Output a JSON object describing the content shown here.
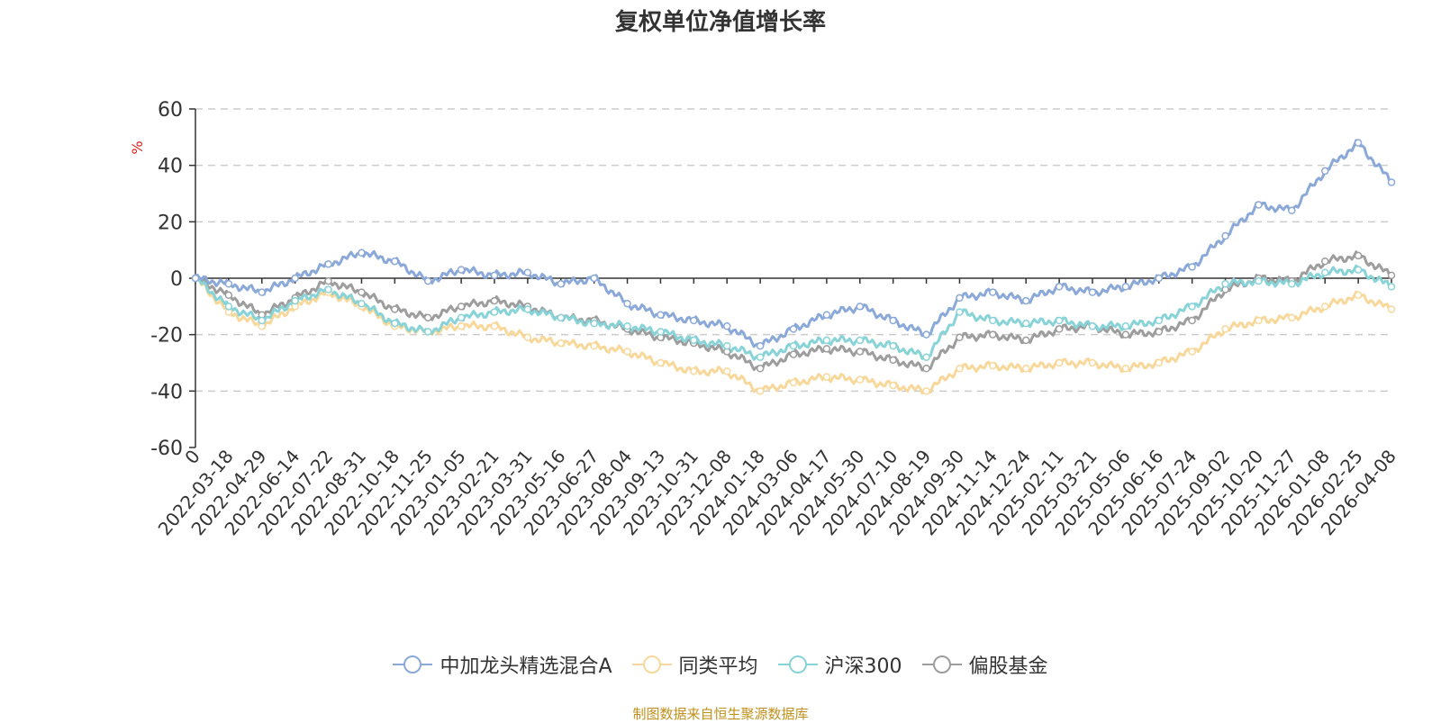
{
  "chart_data": {
    "type": "line",
    "title": "复权单位净值增长率",
    "ylabel": "%",
    "ylim": [
      -60,
      60
    ],
    "yticks": [
      60,
      40,
      20,
      0,
      -20,
      -40,
      -60
    ],
    "grid": true,
    "legend_position": "bottom",
    "x": [
      "0",
      "2022-03-18",
      "2022-04-29",
      "2022-06-14",
      "2022-07-22",
      "2022-08-31",
      "2022-10-18",
      "2022-11-25",
      "2023-01-05",
      "2023-02-21",
      "2023-03-31",
      "2023-05-16",
      "2023-06-27",
      "2023-08-04",
      "2023-09-13",
      "2023-10-31",
      "2023-12-08",
      "2024-01-18",
      "2024-03-06",
      "2024-04-17",
      "2024-05-30",
      "2024-07-10",
      "2024-08-19",
      "2024-09-30",
      "2024-11-14",
      "2024-12-24",
      "2025-02-11",
      "2025-03-21",
      "2025-05-06",
      "2025-06-16",
      "2025-07-24",
      "2025-09-02",
      "2025-10-20",
      "2025-11-27",
      "2026-01-08",
      "2026-02-25",
      "2026-04-08"
    ],
    "series": [
      {
        "name": "中加龙头精选混合A",
        "color": "#8aa8d8",
        "values": [
          0,
          -2,
          -5,
          0,
          5,
          9,
          6,
          -1,
          3,
          1,
          2,
          -2,
          0,
          -9,
          -13,
          -15,
          -17,
          -24,
          -18,
          -13,
          -10,
          -15,
          -20,
          -7,
          -5,
          -8,
          -3,
          -5,
          -3,
          0,
          4,
          15,
          26,
          24,
          38,
          48,
          34
        ]
      },
      {
        "name": "同类平均",
        "color": "#f8d89a",
        "values": [
          0,
          -12,
          -17,
          -10,
          -5,
          -10,
          -17,
          -19,
          -17,
          -17,
          -21,
          -23,
          -24,
          -26,
          -30,
          -33,
          -33,
          -40,
          -37,
          -35,
          -36,
          -38,
          -40,
          -32,
          -31,
          -32,
          -30,
          -30,
          -32,
          -30,
          -26,
          -18,
          -15,
          -14,
          -10,
          -6,
          -11
        ]
      },
      {
        "name": "沪深300",
        "color": "#87d3d8",
        "values": [
          0,
          -10,
          -15,
          -8,
          -4,
          -9,
          -16,
          -19,
          -14,
          -12,
          -11,
          -14,
          -16,
          -17,
          -19,
          -22,
          -24,
          -28,
          -24,
          -22,
          -22,
          -24,
          -28,
          -12,
          -15,
          -16,
          -15,
          -17,
          -17,
          -15,
          -10,
          -2,
          -1,
          -2,
          2,
          3,
          -3
        ]
      },
      {
        "name": "偏股基金",
        "color": "#9d9d9d",
        "values": [
          0,
          -6,
          -13,
          -7,
          -1,
          -5,
          -11,
          -14,
          -10,
          -8,
          -10,
          -14,
          -15,
          -18,
          -21,
          -23,
          -26,
          -32,
          -27,
          -25,
          -26,
          -29,
          -32,
          -21,
          -20,
          -22,
          -18,
          -17,
          -20,
          -19,
          -15,
          -4,
          0,
          -1,
          6,
          8,
          1
        ]
      }
    ]
  },
  "source_note": "制图数据来自恒生聚源数据库"
}
